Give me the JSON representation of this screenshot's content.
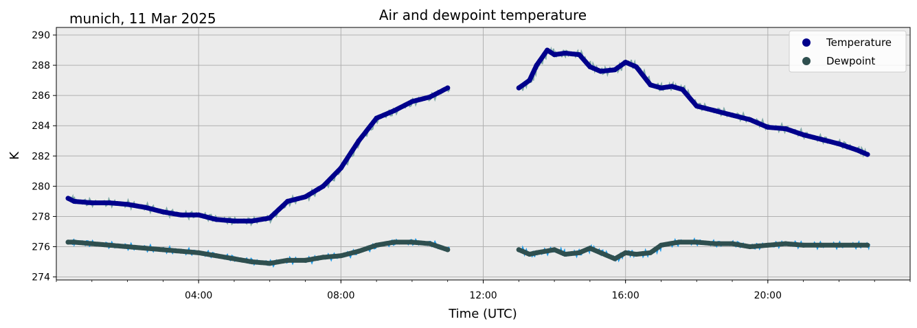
{
  "header": {
    "location_date": "munich, 11 Mar 2025"
  },
  "chart_data": {
    "type": "line",
    "title": "Air and dewpoint temperature",
    "xlabel": "Time (UTC)",
    "ylabel": "K",
    "xlim_hours": [
      0,
      24
    ],
    "ylim": [
      273.8,
      290.5
    ],
    "grid": true,
    "legend_position": "top-right",
    "x_ticks": [
      {
        "hour": 4,
        "label": "04:00"
      },
      {
        "hour": 8,
        "label": "08:00"
      },
      {
        "hour": 12,
        "label": "12:00"
      },
      {
        "hour": 16,
        "label": "16:00"
      },
      {
        "hour": 20,
        "label": "20:00"
      }
    ],
    "y_ticks": [
      274,
      276,
      278,
      280,
      282,
      284,
      286,
      288,
      290
    ],
    "colors": {
      "plot_background": "#ebebeb",
      "grid": "#b0b0b0",
      "temperature": "#00008b",
      "temperature_raw": "#7fa8a8",
      "dewpoint": "#2f4f4f",
      "dewpoint_raw": "#1e9be8"
    },
    "series": [
      {
        "name": "Temperature",
        "x": [
          0.33,
          0.5,
          1.0,
          1.5,
          2.0,
          2.5,
          3.0,
          3.5,
          4.0,
          4.5,
          5.0,
          5.5,
          6.0,
          6.5,
          7.0,
          7.5,
          8.0,
          8.5,
          9.0,
          9.5,
          10.0,
          10.5,
          11.0,
          13.0,
          13.3,
          13.5,
          13.8,
          14.0,
          14.3,
          14.7,
          15.0,
          15.3,
          15.7,
          16.0,
          16.3,
          16.7,
          17.0,
          17.3,
          17.6,
          18.0,
          18.5,
          19.0,
          19.5,
          20.0,
          20.5,
          21.0,
          21.5,
          22.0,
          22.5,
          22.8
        ],
        "y": [
          279.2,
          279.0,
          278.9,
          278.9,
          278.8,
          278.6,
          278.3,
          278.1,
          278.1,
          277.8,
          277.7,
          277.7,
          277.9,
          279.0,
          279.3,
          280.0,
          281.2,
          283.0,
          284.5,
          285.0,
          285.6,
          285.9,
          286.5,
          286.5,
          287.0,
          288.0,
          289.0,
          288.7,
          288.8,
          288.7,
          287.9,
          287.6,
          287.7,
          288.2,
          287.9,
          286.7,
          286.5,
          286.6,
          286.4,
          285.3,
          285.0,
          284.7,
          284.4,
          283.9,
          283.8,
          283.4,
          283.1,
          282.8,
          282.4,
          282.1
        ]
      },
      {
        "name": "Dewpoint",
        "x": [
          0.33,
          0.5,
          1.0,
          1.5,
          2.0,
          2.5,
          3.0,
          3.5,
          4.0,
          4.5,
          5.0,
          5.5,
          6.0,
          6.5,
          7.0,
          7.5,
          8.0,
          8.5,
          9.0,
          9.5,
          10.0,
          10.5,
          11.0,
          13.0,
          13.3,
          13.5,
          14.0,
          14.3,
          14.7,
          15.0,
          15.3,
          15.7,
          16.0,
          16.3,
          16.7,
          17.0,
          17.5,
          18.0,
          18.5,
          19.0,
          19.5,
          20.0,
          20.5,
          21.0,
          21.5,
          22.0,
          22.5,
          22.8
        ],
        "y": [
          276.3,
          276.3,
          276.2,
          276.1,
          276.0,
          275.9,
          275.8,
          275.7,
          275.6,
          275.4,
          275.2,
          275.0,
          274.9,
          275.1,
          275.1,
          275.3,
          275.4,
          275.7,
          276.1,
          276.3,
          276.3,
          276.2,
          275.8,
          275.8,
          275.5,
          275.6,
          275.8,
          275.5,
          275.6,
          275.9,
          275.6,
          275.2,
          275.6,
          275.5,
          275.6,
          276.1,
          276.3,
          276.3,
          276.2,
          276.2,
          276.0,
          276.1,
          276.2,
          276.1,
          276.1,
          276.1,
          276.1,
          276.1
        ]
      }
    ]
  }
}
